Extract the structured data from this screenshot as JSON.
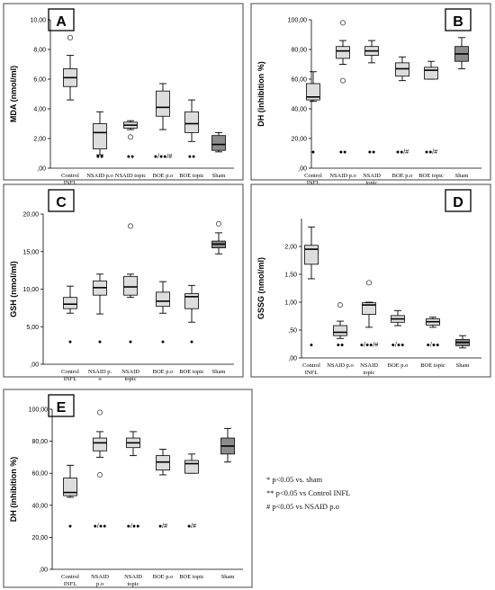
{
  "chart_data": [
    {
      "type": "boxplot",
      "panel": "A",
      "ylabel": "MDA (nmol/ml)",
      "ylim": [
        0,
        10
      ],
      "yticks": [
        0,
        2,
        4,
        6,
        8,
        10
      ],
      "ytick_labels": [
        ",00",
        "2,00",
        "4,00",
        "6,00",
        "8,00",
        "10,00"
      ],
      "categories": [
        [
          "Control",
          "INFL"
        ],
        [
          "NSAID p.o"
        ],
        [
          "NSAID topic"
        ],
        [
          "BOE p.o"
        ],
        [
          "BOE topic"
        ],
        [
          "Sham"
        ]
      ],
      "boxes": [
        {
          "min": 4.6,
          "q1": 5.5,
          "median": 6.1,
          "q3": 6.7,
          "max": 7.6,
          "outliers": [
            8.8
          ],
          "sig": "",
          "sig_y": 0.8
        },
        {
          "min": 0.9,
          "q1": 1.3,
          "median": 2.4,
          "q3": 3.0,
          "max": 3.8,
          "outliers": [],
          "sig": "●●",
          "sig_y": 0.8
        },
        {
          "min": 2.6,
          "q1": 2.7,
          "median": 2.9,
          "q3": 3.1,
          "max": 3.2,
          "outliers": [
            2.1
          ],
          "sig": "●●",
          "sig_y": 0.8
        },
        {
          "min": 2.6,
          "q1": 3.5,
          "median": 4.1,
          "q3": 5.2,
          "max": 5.7,
          "outliers": [],
          "sig": "●/●●/#",
          "sig_y": 0.8
        },
        {
          "min": 1.8,
          "q1": 2.4,
          "median": 3.0,
          "q3": 3.8,
          "max": 4.6,
          "outliers": [],
          "sig": "●●",
          "sig_y": 0.8
        },
        {
          "min": 1.1,
          "q1": 1.2,
          "median": 1.6,
          "q3": 2.2,
          "max": 2.4,
          "outliers": [],
          "sig": "",
          "sig_y": 0.8,
          "dark": true
        }
      ]
    },
    {
      "type": "boxplot",
      "panel": "B",
      "ylabel": "DH (inhibition %)",
      "ylim": [
        0,
        100
      ],
      "yticks": [
        0,
        20,
        40,
        60,
        80,
        100
      ],
      "ytick_labels": [
        ",00",
        "20,00",
        "40,00",
        "60,00",
        "80,00",
        "100,00"
      ],
      "categories": [
        [
          "Control",
          "INFL"
        ],
        [
          "NSAID p.o"
        ],
        [
          "NSAID",
          "topic"
        ],
        [
          "BOE p.o"
        ],
        [
          "BOE topic"
        ],
        [
          "Sham"
        ]
      ],
      "boxes": [
        {
          "min": 45,
          "q1": 46,
          "median": 48,
          "q3": 57,
          "max": 65,
          "outliers": [],
          "sig": "●",
          "sig_y": 11
        },
        {
          "min": 70,
          "q1": 74,
          "median": 79,
          "q3": 82,
          "max": 86,
          "outliers": [
            98,
            59
          ],
          "sig": "●●",
          "sig_y": 11
        },
        {
          "min": 71,
          "q1": 76,
          "median": 79,
          "q3": 82,
          "max": 86,
          "outliers": [],
          "sig": "●●",
          "sig_y": 11
        },
        {
          "min": 59,
          "q1": 62,
          "median": 67,
          "q3": 71,
          "max": 75,
          "outliers": [],
          "sig": "●●/#",
          "sig_y": 11
        },
        {
          "min": 60,
          "q1": 60,
          "median": 66,
          "q3": 68,
          "max": 72,
          "outliers": [],
          "sig": "●●/#",
          "sig_y": 11
        },
        {
          "min": 67,
          "q1": 72,
          "median": 77,
          "q3": 82,
          "max": 88,
          "outliers": [],
          "sig": "",
          "sig_y": 11,
          "dark": true
        }
      ]
    },
    {
      "type": "boxplot",
      "panel": "C",
      "ylabel": "GSH (nmol/ml)",
      "ylim": [
        0,
        20
      ],
      "yticks": [
        0,
        5,
        10,
        15,
        20
      ],
      "ytick_labels": [
        ",00",
        "5,00",
        "10,00",
        "15,00",
        "20,00"
      ],
      "categories": [
        [
          "Control",
          "INFL"
        ],
        [
          "NSAID p.",
          "o"
        ],
        [
          "NSAID",
          "topic"
        ],
        [
          "BOE p.o"
        ],
        [
          "BOE topic"
        ],
        [
          "Sham"
        ]
      ],
      "boxes": [
        {
          "min": 6.8,
          "q1": 7.4,
          "median": 8.0,
          "q3": 8.9,
          "max": 10.4,
          "outliers": [],
          "sig": "●",
          "sig_y": 3.0
        },
        {
          "min": 6.7,
          "q1": 9.2,
          "median": 10.2,
          "q3": 11.1,
          "max": 12.0,
          "outliers": [],
          "sig": "●",
          "sig_y": 3.0
        },
        {
          "min": 8.9,
          "q1": 9.2,
          "median": 10.3,
          "q3": 11.7,
          "max": 12.0,
          "outliers": [
            18.4
          ],
          "sig": "●",
          "sig_y": 3.0
        },
        {
          "min": 6.8,
          "q1": 7.7,
          "median": 8.4,
          "q3": 9.6,
          "max": 11.0,
          "outliers": [],
          "sig": "●",
          "sig_y": 3.0
        },
        {
          "min": 5.6,
          "q1": 7.4,
          "median": 9.0,
          "q3": 9.4,
          "max": 10.5,
          "outliers": [],
          "sig": "●",
          "sig_y": 3.0
        },
        {
          "min": 14.7,
          "q1": 15.5,
          "median": 16.0,
          "q3": 16.4,
          "max": 17.5,
          "outliers": [
            18.7
          ],
          "sig": "",
          "sig_y": 3.0,
          "dark": true
        }
      ]
    },
    {
      "type": "boxplot",
      "panel": "D",
      "ylabel": "GSSG (nmol/ml)",
      "ylim": [
        0,
        2.5
      ],
      "yticks": [
        0,
        0.5,
        1.0,
        1.5,
        2.0
      ],
      "ytick_labels": [
        ",00",
        ",50",
        "1,00",
        "1,50",
        "2,00"
      ],
      "categories": [
        [
          "Control",
          "INFL"
        ],
        [
          "NSAID p.o"
        ],
        [
          "NSAID",
          "topic"
        ],
        [
          "BOE p.o"
        ],
        [
          "BOE topic"
        ],
        [
          "Sham"
        ]
      ],
      "boxes": [
        {
          "min": 1.42,
          "q1": 1.68,
          "median": 1.95,
          "q3": 2.02,
          "max": 2.35,
          "outliers": [],
          "sig": "●",
          "sig_y": 0.23
        },
        {
          "min": 0.35,
          "q1": 0.4,
          "median": 0.46,
          "q3": 0.58,
          "max": 0.66,
          "outliers": [
            0.95
          ],
          "sig": "●●",
          "sig_y": 0.23
        },
        {
          "min": 0.55,
          "q1": 0.78,
          "median": 0.95,
          "q3": 0.99,
          "max": 1.0,
          "outliers": [
            1.35
          ],
          "sig": "●/●●/#",
          "sig_y": 0.23
        },
        {
          "min": 0.58,
          "q1": 0.64,
          "median": 0.7,
          "q3": 0.76,
          "max": 0.85,
          "outliers": [],
          "sig": "●/●●",
          "sig_y": 0.23
        },
        {
          "min": 0.55,
          "q1": 0.59,
          "median": 0.65,
          "q3": 0.7,
          "max": 0.73,
          "outliers": [],
          "sig": "●/●●",
          "sig_y": 0.23
        },
        {
          "min": 0.18,
          "q1": 0.22,
          "median": 0.28,
          "q3": 0.33,
          "max": 0.4,
          "outliers": [],
          "sig": "",
          "sig_y": 0.23,
          "dark": true
        }
      ]
    },
    {
      "type": "boxplot",
      "panel": "E",
      "ylabel": "DH (inhibition %)",
      "ylim": [
        0,
        100
      ],
      "yticks": [
        0,
        20,
        40,
        60,
        80,
        100
      ],
      "ytick_labels": [
        ",00",
        "20,00",
        "40,00",
        "60,00",
        "80,00",
        "100,00"
      ],
      "categories": [
        [
          "Control",
          "INFL"
        ],
        [
          "NSAID",
          "p.o"
        ],
        [
          "NSAID",
          "topic"
        ],
        [
          "BOE p.o"
        ],
        [
          "BOE topic"
        ],
        [
          "Sham"
        ]
      ],
      "boxes": [
        {
          "min": 45,
          "q1": 46,
          "median": 48,
          "q3": 57,
          "max": 65,
          "outliers": [],
          "sig": "●",
          "sig_y": 27
        },
        {
          "min": 70,
          "q1": 74,
          "median": 79,
          "q3": 82,
          "max": 86,
          "outliers": [
            98,
            59
          ],
          "sig": "●/●●",
          "sig_y": 27
        },
        {
          "min": 71,
          "q1": 76,
          "median": 79,
          "q3": 82,
          "max": 86,
          "outliers": [],
          "sig": "●/●●",
          "sig_y": 27
        },
        {
          "min": 59,
          "q1": 62,
          "median": 67,
          "q3": 71,
          "max": 75,
          "outliers": [],
          "sig": "●/#",
          "sig_y": 27
        },
        {
          "min": 60,
          "q1": 60,
          "median": 66,
          "q3": 68,
          "max": 72,
          "outliers": [],
          "sig": "●/#",
          "sig_y": 27
        },
        {
          "min": 67,
          "q1": 72,
          "median": 77,
          "q3": 82,
          "max": 88,
          "outliers": [],
          "sig": "",
          "sig_y": 27,
          "dark": true
        }
      ]
    }
  ],
  "legend": [
    "* p<0.05 vs. sham",
    "** p<0.05 vs Control INFL",
    "# p<0.05 vs NSAID p.o"
  ],
  "colors": {
    "box": "#dddddd",
    "sham_box": "#8c8c8c",
    "stroke": "#000000",
    "frame": "#444444"
  }
}
